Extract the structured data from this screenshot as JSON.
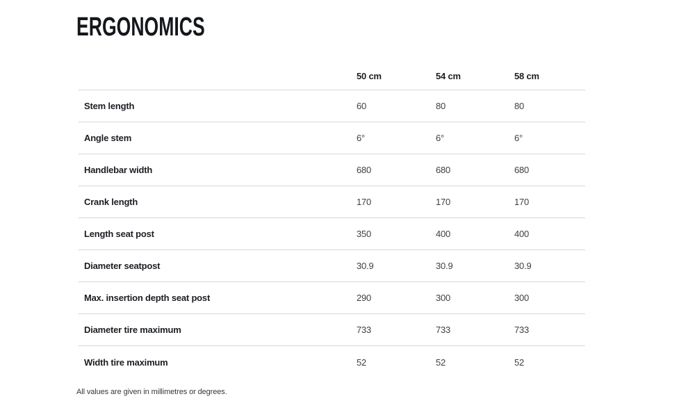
{
  "page": {
    "title": "ERGONOMICS",
    "footnote": "All values are given in millimetres or degrees."
  },
  "colors": {
    "background": "#ffffff",
    "heading_text": "#14171c",
    "label_text": "#1b1e23",
    "value_text": "#3c3f44",
    "divider": "#d6d6d6"
  },
  "table": {
    "columns": [
      "50 cm",
      "54 cm",
      "58 cm"
    ],
    "rows": [
      {
        "label": "Stem length",
        "values": [
          "60",
          "80",
          "80"
        ]
      },
      {
        "label": "Angle stem",
        "values": [
          "6°",
          "6°",
          "6°"
        ]
      },
      {
        "label": "Handlebar width",
        "values": [
          "680",
          "680",
          "680"
        ]
      },
      {
        "label": "Crank length",
        "values": [
          "170",
          "170",
          "170"
        ]
      },
      {
        "label": "Length seat post",
        "values": [
          "350",
          "400",
          "400"
        ]
      },
      {
        "label": "Diameter seatpost",
        "values": [
          "30.9",
          "30.9",
          "30.9"
        ]
      },
      {
        "label": "Max. insertion depth seat post",
        "values": [
          "290",
          "300",
          "300"
        ]
      },
      {
        "label": "Diameter tire maximum",
        "values": [
          "733",
          "733",
          "733"
        ]
      },
      {
        "label": "Width tire maximum",
        "values": [
          "52",
          "52",
          "52"
        ]
      }
    ]
  }
}
